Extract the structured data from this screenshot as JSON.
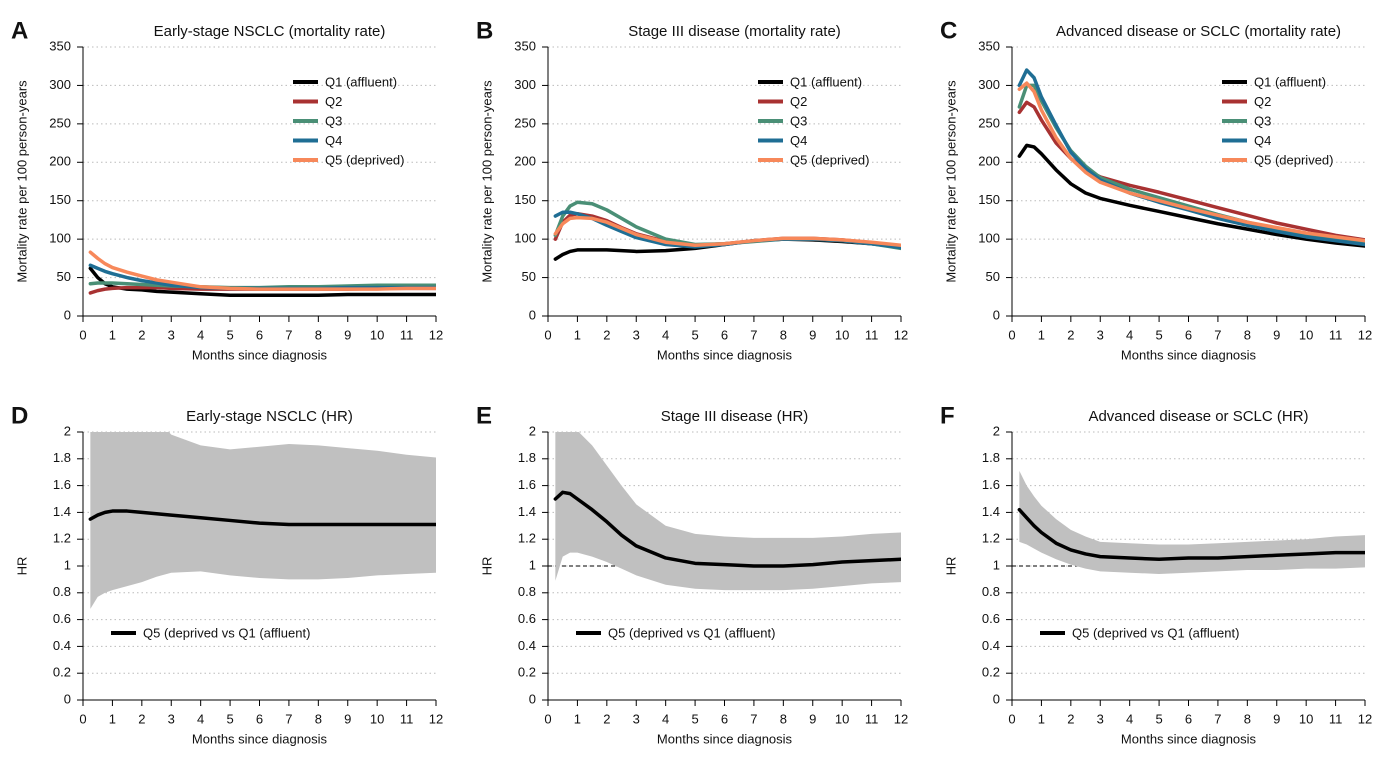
{
  "chart_data": [
    {
      "type": "line",
      "label": "A",
      "title": "Early-stage NSCLC (mortality rate)",
      "x_label": "Months since diagnosis",
      "y_label": "Mortality rate per 100 person-years",
      "x": [
        0.25,
        0.5,
        0.75,
        1,
        1.5,
        2,
        2.5,
        3,
        4,
        5,
        6,
        7,
        8,
        9,
        10,
        11,
        12
      ],
      "series": [
        {
          "name": "Q1 (affluent)",
          "color": "#000000",
          "values": [
            62,
            50,
            42,
            38,
            35,
            34,
            32,
            31,
            29,
            27,
            27,
            27,
            27,
            28,
            28,
            28,
            28
          ]
        },
        {
          "name": "Q2",
          "color": "#a83232",
          "values": [
            30,
            33,
            35,
            36,
            37,
            37,
            37,
            36,
            35,
            35,
            35,
            35,
            35,
            35,
            36,
            36,
            36
          ]
        },
        {
          "name": "Q3",
          "color": "#4a8f76",
          "values": [
            42,
            43,
            43,
            43,
            42,
            41,
            40,
            39,
            38,
            37,
            37,
            38,
            38,
            39,
            40,
            40,
            40
          ]
        },
        {
          "name": "Q4",
          "color": "#1f6e94",
          "values": [
            66,
            62,
            58,
            55,
            50,
            46,
            43,
            40,
            37,
            36,
            36,
            36,
            36,
            37,
            37,
            37,
            37
          ]
        },
        {
          "name": "Q5 (deprived)",
          "color": "#f7885a",
          "values": [
            83,
            75,
            68,
            63,
            57,
            52,
            47,
            44,
            38,
            36,
            35,
            35,
            35,
            35,
            35,
            36,
            36
          ]
        }
      ],
      "xlim": [
        0,
        12
      ],
      "ylim": [
        0,
        350
      ],
      "xticks": [
        0,
        1,
        2,
        3,
        4,
        5,
        6,
        7,
        8,
        9,
        10,
        11,
        12
      ],
      "yticks": [
        0,
        50,
        100,
        150,
        200,
        250,
        300,
        350
      ],
      "grid": true,
      "legend": "upper right"
    },
    {
      "type": "line",
      "label": "B",
      "title": "Stage III disease (mortality rate)",
      "x_label": "Months since diagnosis",
      "y_label": "Mortality rate per 100 person-years",
      "x": [
        0.25,
        0.5,
        0.75,
        1,
        1.5,
        2,
        2.5,
        3,
        4,
        5,
        6,
        7,
        8,
        9,
        10,
        11,
        12
      ],
      "series": [
        {
          "name": "Q1 (affluent)",
          "color": "#000000",
          "values": [
            74,
            80,
            84,
            86,
            86,
            86,
            85,
            84,
            85,
            88,
            93,
            98,
            100,
            99,
            97,
            94,
            90
          ]
        },
        {
          "name": "Q2",
          "color": "#a83232",
          "values": [
            100,
            122,
            131,
            133,
            130,
            124,
            115,
            107,
            97,
            92,
            94,
            98,
            101,
            101,
            99,
            95,
            91
          ]
        },
        {
          "name": "Q3",
          "color": "#4a8f76",
          "values": [
            105,
            130,
            143,
            148,
            146,
            138,
            127,
            116,
            100,
            93,
            94,
            97,
            100,
            100,
            98,
            94,
            88
          ]
        },
        {
          "name": "Q4",
          "color": "#1f6e94",
          "values": [
            130,
            135,
            135,
            133,
            127,
            118,
            110,
            102,
            93,
            90,
            93,
            98,
            100,
            100,
            98,
            94,
            89
          ]
        },
        {
          "name": "Q5 (deprived)",
          "color": "#f7885a",
          "values": [
            107,
            120,
            127,
            128,
            127,
            122,
            114,
            106,
            96,
            92,
            94,
            98,
            101,
            101,
            99,
            96,
            92
          ]
        }
      ],
      "xlim": [
        0,
        12
      ],
      "ylim": [
        0,
        350
      ],
      "xticks": [
        0,
        1,
        2,
        3,
        4,
        5,
        6,
        7,
        8,
        9,
        10,
        11,
        12
      ],
      "yticks": [
        0,
        50,
        100,
        150,
        200,
        250,
        300,
        350
      ],
      "grid": true,
      "legend": "upper right"
    },
    {
      "type": "line",
      "label": "C",
      "title": "Advanced disease or SCLC (mortality rate)",
      "x_label": "Months since diagnosis",
      "y_label": "Mortality rate per 100 person-years",
      "x": [
        0.25,
        0.5,
        0.75,
        1,
        1.5,
        2,
        2.5,
        3,
        4,
        5,
        6,
        7,
        8,
        9,
        10,
        11,
        12
      ],
      "series": [
        {
          "name": "Q1 (affluent)",
          "color": "#000000",
          "values": [
            208,
            222,
            220,
            211,
            190,
            172,
            160,
            153,
            144,
            136,
            128,
            120,
            113,
            106,
            100,
            95,
            91
          ]
        },
        {
          "name": "Q2",
          "color": "#a83232",
          "values": [
            265,
            278,
            272,
            255,
            225,
            205,
            190,
            181,
            170,
            161,
            151,
            141,
            131,
            121,
            113,
            105,
            99
          ]
        },
        {
          "name": "Q3",
          "color": "#4a8f76",
          "values": [
            272,
            300,
            300,
            280,
            245,
            215,
            195,
            180,
            165,
            154,
            143,
            132,
            122,
            113,
            106,
            100,
            96
          ]
        },
        {
          "name": "Q4",
          "color": "#1f6e94",
          "values": [
            300,
            320,
            310,
            285,
            248,
            213,
            192,
            177,
            160,
            148,
            138,
            127,
            118,
            110,
            103,
            98,
            93
          ]
        },
        {
          "name": "Q5 (deprived)",
          "color": "#f7885a",
          "values": [
            295,
            303,
            292,
            268,
            232,
            205,
            187,
            174,
            160,
            150,
            140,
            131,
            122,
            115,
            108,
            103,
            98
          ]
        }
      ],
      "xlim": [
        0,
        12
      ],
      "ylim": [
        0,
        350
      ],
      "xticks": [
        0,
        1,
        2,
        3,
        4,
        5,
        6,
        7,
        8,
        9,
        10,
        11,
        12
      ],
      "yticks": [
        0,
        50,
        100,
        150,
        200,
        250,
        300,
        350
      ],
      "grid": true,
      "legend": "upper right"
    },
    {
      "type": "line",
      "label": "D",
      "title": "Early-stage NSCLC (HR)",
      "x_label": "Months since diagnosis",
      "y_label": "HR",
      "x": [
        0.25,
        0.5,
        0.75,
        1,
        1.5,
        2,
        2.5,
        3,
        4,
        5,
        6,
        7,
        8,
        9,
        10,
        11,
        12
      ],
      "series": [
        {
          "name": "Q5 (deprived vs Q1 (affluent)",
          "color": "#000000",
          "values": [
            1.35,
            1.38,
            1.4,
            1.41,
            1.41,
            1.4,
            1.39,
            1.38,
            1.36,
            1.34,
            1.32,
            1.31,
            1.31,
            1.31,
            1.31,
            1.31,
            1.31
          ],
          "ci_lower": [
            0.68,
            0.77,
            0.8,
            0.82,
            0.85,
            0.88,
            0.92,
            0.95,
            0.96,
            0.93,
            0.91,
            0.9,
            0.9,
            0.91,
            0.93,
            0.94,
            0.95
          ],
          "ci_upper": [
            2.3,
            2.3,
            2.3,
            2.3,
            2.3,
            2.25,
            2.1,
            1.98,
            1.9,
            1.87,
            1.89,
            1.91,
            1.9,
            1.88,
            1.86,
            1.83,
            1.81
          ],
          "ci_color": "#c0c0c0"
        }
      ],
      "xlim": [
        0,
        12
      ],
      "ylim": [
        0,
        2
      ],
      "xticks": [
        0,
        1,
        2,
        3,
        4,
        5,
        6,
        7,
        8,
        9,
        10,
        11,
        12
      ],
      "yticks": [
        0,
        0.2,
        0.4,
        0.6,
        0.8,
        1,
        1.2,
        1.4,
        1.6,
        1.8,
        2
      ],
      "grid": true,
      "legend": "lower left"
    },
    {
      "type": "line",
      "label": "E",
      "title": "Stage III disease (HR)",
      "x_label": "Months since diagnosis",
      "y_label": "HR",
      "x": [
        0.25,
        0.5,
        0.75,
        1,
        1.5,
        2,
        2.5,
        3,
        4,
        5,
        6,
        7,
        8,
        9,
        10,
        11,
        12
      ],
      "series": [
        {
          "name": "Q5 (deprived vs Q1 (affluent)",
          "color": "#000000",
          "values": [
            1.5,
            1.55,
            1.54,
            1.5,
            1.42,
            1.33,
            1.23,
            1.15,
            1.06,
            1.02,
            1.01,
            1.0,
            1.0,
            1.01,
            1.03,
            1.04,
            1.05
          ],
          "ci_lower": [
            0.89,
            1.07,
            1.1,
            1.1,
            1.07,
            1.03,
            0.98,
            0.93,
            0.86,
            0.83,
            0.82,
            0.82,
            0.82,
            0.83,
            0.85,
            0.87,
            0.88
          ],
          "ci_upper": [
            2.4,
            2.3,
            2.1,
            2.01,
            1.9,
            1.75,
            1.6,
            1.46,
            1.3,
            1.24,
            1.22,
            1.21,
            1.21,
            1.21,
            1.22,
            1.24,
            1.25
          ],
          "ci_color": "#c0c0c0"
        }
      ],
      "xlim": [
        0,
        12
      ],
      "ylim": [
        0,
        2
      ],
      "xticks": [
        0,
        1,
        2,
        3,
        4,
        5,
        6,
        7,
        8,
        9,
        10,
        11,
        12
      ],
      "yticks": [
        0,
        0.2,
        0.4,
        0.6,
        0.8,
        1,
        1.2,
        1.4,
        1.6,
        1.8,
        2
      ],
      "grid": true,
      "legend": "lower left",
      "reference_line": 1
    },
    {
      "type": "line",
      "label": "F",
      "title": "Advanced disease or SCLC (HR)",
      "x_label": "Months since diagnosis",
      "y_label": "HR",
      "x": [
        0.25,
        0.5,
        0.75,
        1,
        1.5,
        2,
        2.5,
        3,
        4,
        5,
        6,
        7,
        8,
        9,
        10,
        11,
        12
      ],
      "series": [
        {
          "name": "Q5 (deprived vs Q1 (affluent)",
          "color": "#000000",
          "values": [
            1.42,
            1.36,
            1.3,
            1.25,
            1.17,
            1.12,
            1.09,
            1.07,
            1.06,
            1.05,
            1.06,
            1.06,
            1.07,
            1.08,
            1.09,
            1.1,
            1.1
          ],
          "ci_lower": [
            1.18,
            1.16,
            1.13,
            1.1,
            1.05,
            1.01,
            0.98,
            0.96,
            0.95,
            0.94,
            0.95,
            0.96,
            0.97,
            0.97,
            0.98,
            0.98,
            0.99
          ],
          "ci_upper": [
            1.71,
            1.6,
            1.52,
            1.45,
            1.35,
            1.27,
            1.22,
            1.18,
            1.17,
            1.16,
            1.16,
            1.17,
            1.18,
            1.19,
            1.2,
            1.22,
            1.23
          ],
          "ci_color": "#c0c0c0"
        }
      ],
      "xlim": [
        0,
        12
      ],
      "ylim": [
        0,
        2
      ],
      "xticks": [
        0,
        1,
        2,
        3,
        4,
        5,
        6,
        7,
        8,
        9,
        10,
        11,
        12
      ],
      "yticks": [
        0,
        0.2,
        0.4,
        0.6,
        0.8,
        1,
        1.2,
        1.4,
        1.6,
        1.8,
        2
      ],
      "grid": true,
      "legend": "lower left",
      "reference_line": 1
    }
  ]
}
